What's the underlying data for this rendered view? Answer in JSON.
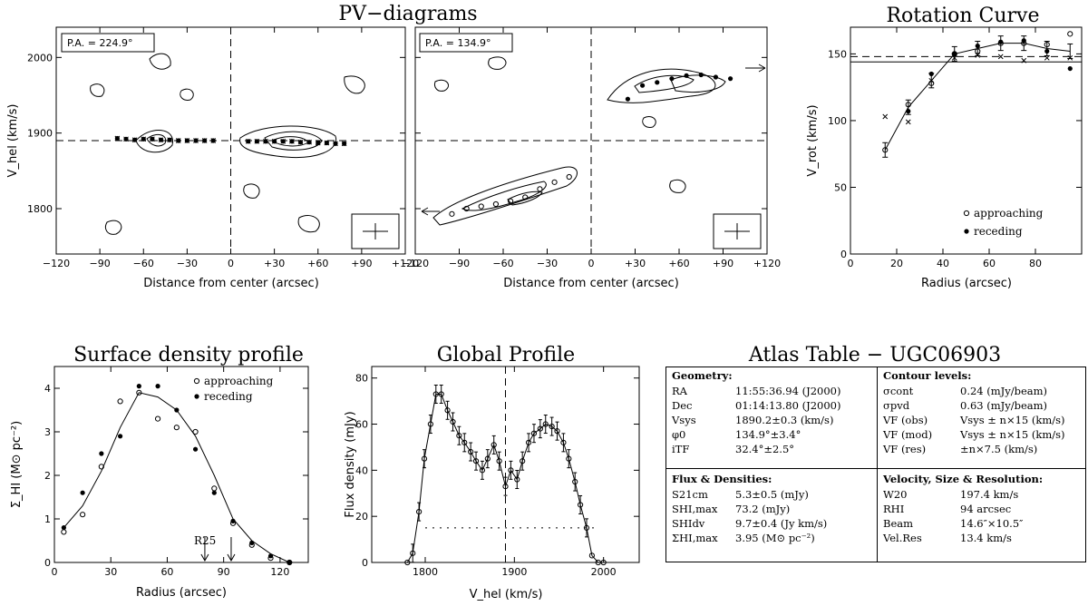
{
  "titles": {
    "pv": "PV−diagrams",
    "rc": "Rotation Curve",
    "sd": "Surface density profile",
    "gp": "Global Profile",
    "atlas": "Atlas Table − UGC06903"
  },
  "pv": {
    "ylabel": "V_hel (km/s)",
    "xlabel": "Distance from center (arcsec)",
    "xticks": [
      "−120",
      "−90",
      "−60",
      "−30",
      "0",
      "+30",
      "+60",
      "+90",
      "+120"
    ],
    "yticks": [
      "1800",
      "1900",
      "2000"
    ],
    "panels": [
      {
        "pa": "P.A. = 224.9°"
      },
      {
        "pa": "P.A. = 134.9°"
      }
    ]
  },
  "chart_data": [
    {
      "type": "scatter",
      "title": "PV−diagrams",
      "panel": "P.A. = 224.9°",
      "xlabel": "Distance from center (arcsec)",
      "ylabel": "V_hel (km/s)",
      "xlim": [
        -120,
        120
      ],
      "ylim": [
        1740,
        2040
      ],
      "vsys": 1890,
      "series": [
        {
          "name": "rotation",
          "x": [
            -78,
            -72,
            -66,
            -60,
            -54,
            -48,
            -42,
            -36,
            -30,
            -24,
            -18,
            -12,
            12,
            18,
            24,
            30,
            36,
            42,
            48,
            54,
            60,
            66,
            72,
            78
          ],
          "y": [
            1893,
            1892,
            1891,
            1892,
            1892,
            1891,
            1891,
            1890,
            1890,
            1890,
            1890,
            1890,
            1889,
            1889,
            1889,
            1889,
            1889,
            1889,
            1888,
            1888,
            1887,
            1887,
            1886,
            1886
          ]
        }
      ]
    },
    {
      "type": "scatter",
      "title": "PV−diagrams",
      "panel": "P.A. = 134.9°",
      "xlabel": "Distance from center (arcsec)",
      "ylabel": "V_hel (km/s)",
      "xlim": [
        -120,
        120
      ],
      "ylim": [
        1740,
        2040
      ],
      "vsys": 1890,
      "series": [
        {
          "name": "approaching",
          "x": [
            -95,
            -85,
            -75,
            -65,
            -55,
            -45,
            -35,
            -25,
            -15
          ],
          "y": [
            1793,
            1800,
            1803,
            1806,
            1810,
            1815,
            1826,
            1835,
            1842
          ]
        },
        {
          "name": "receding",
          "x": [
            25,
            35,
            45,
            55,
            65,
            75,
            85,
            95
          ],
          "y": [
            1945,
            1963,
            1967,
            1972,
            1976,
            1977,
            1974,
            1972
          ]
        }
      ]
    },
    {
      "type": "line",
      "title": "Rotation Curve",
      "xlabel": "Radius (arcsec)",
      "ylabel": "V_rot (km/s)",
      "xlim": [
        0,
        100
      ],
      "ylim": [
        0,
        170
      ],
      "vflat": [
        144,
        148
      ],
      "xticks": [
        0,
        20,
        40,
        60,
        80
      ],
      "yticks": [
        0,
        50,
        100,
        150
      ],
      "series": [
        {
          "name": "model",
          "x": [
            15,
            25,
            35,
            45,
            55,
            65,
            75,
            85,
            95
          ],
          "y": [
            78,
            110,
            130,
            150,
            154,
            158,
            158,
            154,
            152
          ]
        },
        {
          "name": "approaching",
          "x": [
            15,
            25,
            35,
            45,
            55,
            65,
            75,
            85,
            95
          ],
          "y": [
            78,
            112,
            128,
            150,
            152,
            158,
            158,
            157,
            165
          ]
        },
        {
          "name": "receding",
          "x": [
            15,
            25,
            35,
            45,
            55,
            65,
            75,
            85,
            95
          ],
          "y": [
            null,
            107,
            135,
            150,
            156,
            159,
            160,
            152,
            139
          ]
        },
        {
          "name": "cross",
          "x": [
            15,
            25,
            35,
            45,
            55,
            65,
            75,
            85,
            95
          ],
          "y": [
            103,
            99,
            130,
            147,
            149,
            148,
            145,
            147,
            147
          ]
        }
      ]
    },
    {
      "type": "line",
      "title": "Surface density profile",
      "xlabel": "Radius (arcsec)",
      "ylabel": "Σ_HI (M⊙ pc⁻²)",
      "xlim": [
        0,
        135
      ],
      "ylim": [
        0,
        4.5
      ],
      "xticks": [
        0,
        30,
        60,
        90,
        120
      ],
      "yticks": [
        0,
        1,
        2,
        3,
        4
      ],
      "R25": 80,
      "R_hi": 94,
      "series": [
        {
          "name": "model",
          "x": [
            5,
            15,
            25,
            35,
            45,
            55,
            65,
            75,
            85,
            95,
            105,
            115,
            125,
            135
          ],
          "y": [
            0.8,
            1.3,
            2.1,
            3.1,
            3.9,
            3.8,
            3.5,
            2.9,
            2.0,
            1.0,
            0.5,
            0.2,
            0.0,
            0.0
          ]
        },
        {
          "name": "approaching",
          "x": [
            5,
            15,
            25,
            35,
            45,
            55,
            65,
            75,
            85,
            95,
            105,
            115,
            125
          ],
          "y": [
            0.7,
            1.1,
            2.2,
            3.7,
            3.9,
            3.3,
            3.1,
            3.0,
            1.7,
            0.9,
            0.4,
            0.1,
            0.0
          ]
        },
        {
          "name": "receding",
          "x": [
            5,
            15,
            25,
            35,
            45,
            55,
            65,
            75,
            85,
            95,
            105,
            115,
            125
          ],
          "y": [
            0.8,
            1.6,
            2.5,
            2.9,
            4.05,
            4.05,
            3.5,
            2.6,
            1.6,
            0.95,
            0.45,
            0.15,
            0.0
          ]
        }
      ]
    },
    {
      "type": "line",
      "title": "Global Profile",
      "xlabel": "V_hel (km/s)",
      "ylabel": "Flux density (mJy)",
      "xlim": [
        1740,
        2040
      ],
      "ylim": [
        0,
        85
      ],
      "vsys": 1890,
      "noise": 15,
      "xticks": [
        1800,
        1900,
        2000
      ],
      "yticks": [
        0,
        20,
        40,
        60,
        80
      ],
      "x": [
        1780,
        1786,
        1793,
        1799,
        1806,
        1812,
        1818,
        1825,
        1831,
        1838,
        1844,
        1851,
        1857,
        1864,
        1870,
        1877,
        1883,
        1890,
        1896,
        1903,
        1909,
        1916,
        1922,
        1929,
        1935,
        1942,
        1948,
        1955,
        1961,
        1968,
        1974,
        1981,
        1987,
        1994,
        2000
      ],
      "y": [
        0,
        4,
        22,
        45,
        60,
        73,
        73,
        66,
        61,
        55,
        52,
        48,
        44,
        40,
        45,
        51,
        44,
        33,
        40,
        36,
        44,
        52,
        56,
        58,
        60,
        59,
        57,
        52,
        45,
        35,
        25,
        15,
        3,
        0,
        0
      ]
    }
  ],
  "rc": {
    "ylabel": "V_rot (km/s)",
    "xlabel": "Radius (arcsec)",
    "legend": {
      "approaching": "approaching",
      "receding": "receding"
    }
  },
  "sd": {
    "ylabel": "Σ_HI (M⊙ pc⁻²)",
    "xlabel": "Radius (arcsec)",
    "r25_label": "R25",
    "legend": {
      "approaching": "approaching",
      "receding": "receding"
    }
  },
  "gp": {
    "ylabel": "Flux density (mJy)",
    "xlabel": "V_hel (km/s)"
  },
  "atlas": {
    "geometry": {
      "title": "Geometry:",
      "rows": [
        {
          "k": "RA",
          "v": "11:55:36.94 (J2000)"
        },
        {
          "k": "Dec",
          "v": "01:14:13.80 (J2000)"
        },
        {
          "k": "Vsys",
          "v": "1890.2±0.3 (km/s)"
        },
        {
          "k": "φ0",
          "v": "134.9°±3.4°"
        },
        {
          "k": "iTF",
          "v": "32.4°±2.5°"
        }
      ]
    },
    "contours": {
      "title": "Contour levels:",
      "rows": [
        {
          "k": "σcont",
          "v": "0.24 (mJy/beam)"
        },
        {
          "k": "σpvd",
          "v": "0.63 (mJy/beam)"
        },
        {
          "k": "VF (obs)",
          "v": "Vsys ± n×15 (km/s)"
        },
        {
          "k": "VF (mod)",
          "v": "Vsys ± n×15 (km/s)"
        },
        {
          "k": "VF (res)",
          "v": "±n×7.5 (km/s)"
        }
      ]
    },
    "flux": {
      "title": "Flux & Densities:",
      "rows": [
        {
          "k": "S21cm",
          "v": "5.3±0.5 (mJy)"
        },
        {
          "k": "SHI,max",
          "v": "73.2 (mJy)"
        },
        {
          "k": "SHIdv",
          "v": "9.7±0.4 (Jy km/s)"
        },
        {
          "k": "ΣHI,max",
          "v": "3.95 (M⊙ pc⁻²)"
        }
      ]
    },
    "velocity": {
      "title": "Velocity, Size & Resolution:",
      "rows": [
        {
          "k": "W20",
          "v": "197.4 km/s"
        },
        {
          "k": "RHI",
          "v": "94 arcsec"
        },
        {
          "k": "Beam",
          "v": "14.6″×10.5″"
        },
        {
          "k": "Vel.Res",
          "v": "13.4 km/s"
        }
      ]
    }
  }
}
